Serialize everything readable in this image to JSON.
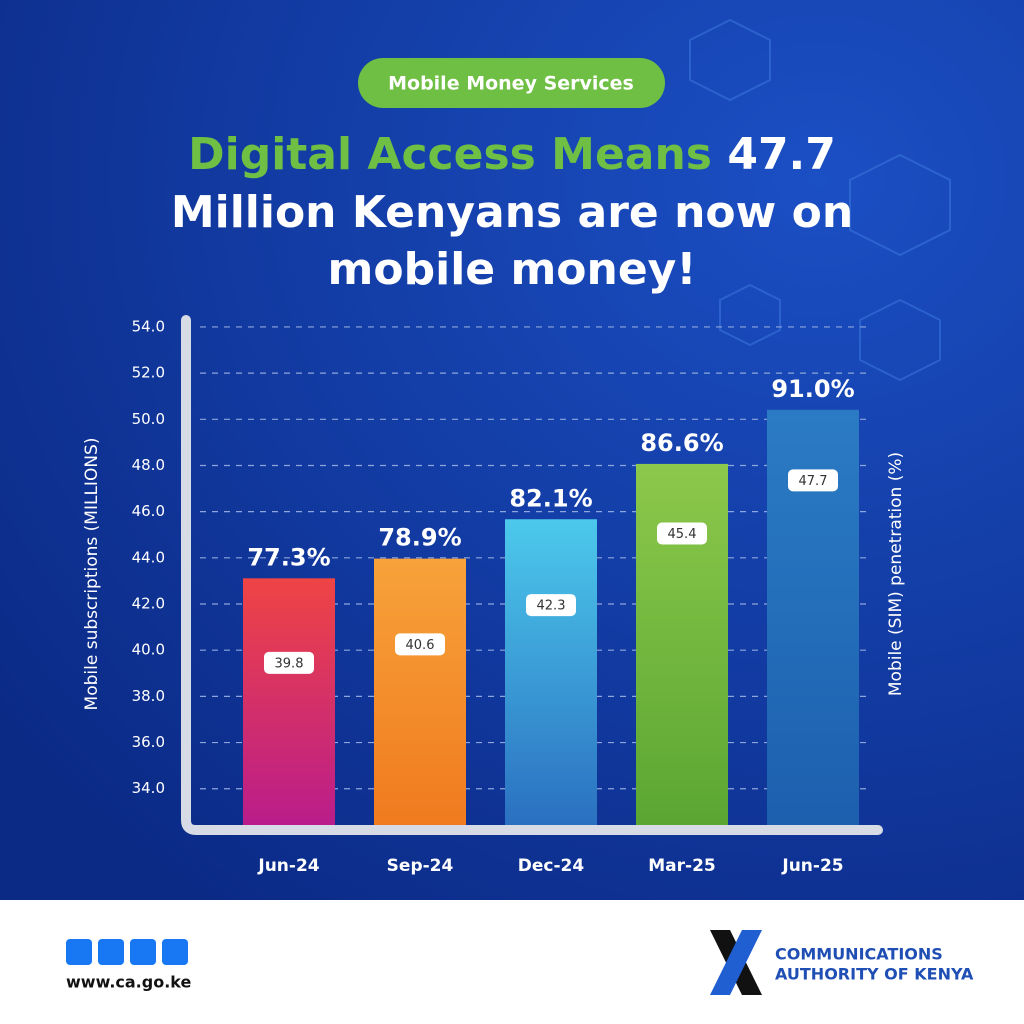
{
  "chart_data": {
    "type": "bar",
    "badge": "Mobile Money Services",
    "title": {
      "highlight": "Digital Access Means",
      "figure": "47.7",
      "line2": "Million Kenyans are now on",
      "line3": "mobile money!"
    },
    "categories": [
      "Jun-24",
      "Sep-24",
      "Dec-24",
      "Mar-25",
      "Jun-25"
    ],
    "ylabel": "Mobile subscriptions (MILLIONS)",
    "y2label": "Mobile (SIM) penetration (%)",
    "ylim": [
      32.3,
      54.3
    ],
    "yticks": [
      {
        "value": 34,
        "label": "34.0"
      },
      {
        "value": 36,
        "label": "36.0"
      },
      {
        "value": 38,
        "label": "38.0"
      },
      {
        "value": 40,
        "label": "40.0"
      },
      {
        "value": 42,
        "label": "42.0"
      },
      {
        "value": 44,
        "label": "44.0"
      },
      {
        "value": 46,
        "label": "46.0"
      },
      {
        "value": 48,
        "label": "48.0"
      },
      {
        "value": 50,
        "label": "50.0"
      },
      {
        "value": 52,
        "label": "52.0"
      },
      {
        "value": 54,
        "label": "54.0"
      }
    ],
    "y2lim": [
      57,
      98.3
    ],
    "grid": true,
    "series": [
      {
        "values": [
          39.8,
          40.6,
          42.3,
          45.4,
          47.7
        ]
      },
      {
        "axis": "y2",
        "values": [
          77.3,
          78.9,
          82.1,
          86.6,
          91.0
        ],
        "value_labels": [
          "77.3%",
          "78.9%",
          "82.1%",
          "86.6%",
          "91.0%"
        ],
        "colors": [
          [
            "#ef4444",
            "#b91c8c"
          ],
          [
            "#f7a23a",
            "#f07a1f"
          ],
          [
            "#4cc9ec",
            "#2a6fc0"
          ],
          [
            "#8cc84b",
            "#5aa632"
          ],
          [
            "#2b7bc4",
            "#1c5fae"
          ]
        ]
      }
    ]
  },
  "footer": {
    "url": "www.ca.go.ke",
    "org_line1": "COMMUNICATIONS",
    "org_line2": "AUTHORITY OF KENYA"
  }
}
